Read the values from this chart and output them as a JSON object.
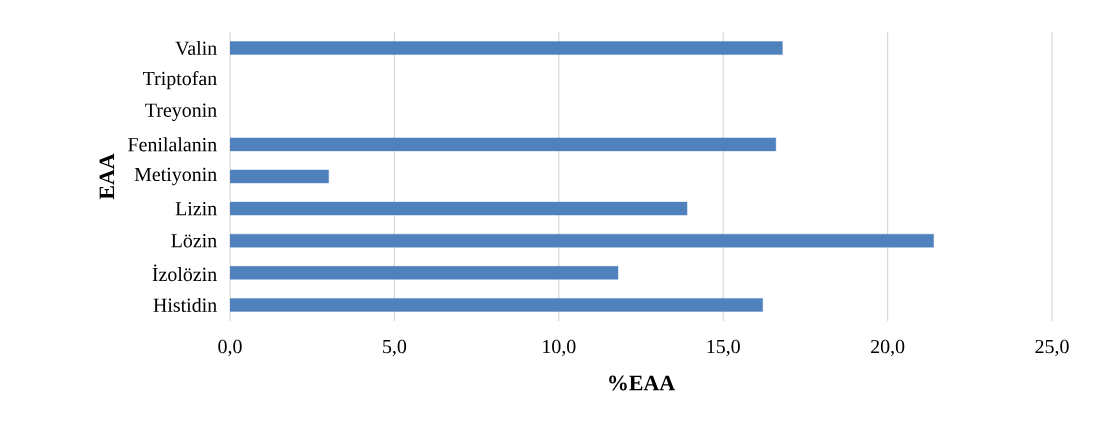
{
  "chart_data": {
    "type": "bar",
    "orientation": "horizontal",
    "xlabel": "%EAA",
    "ylabel": "EAA",
    "categories": [
      "Valin",
      "Triptofan",
      "Treyonin",
      "Fenilalanin",
      "Metiyonin",
      "Lizin",
      "Lözin",
      "İzolözin",
      "Histidin"
    ],
    "values": [
      16.8,
      null,
      null,
      16.6,
      3.0,
      13.9,
      21.4,
      11.8,
      16.2
    ],
    "color": "#4f81bd",
    "xlim": [
      0,
      25
    ],
    "xticks": [
      {
        "value": 0,
        "label": "0,0"
      },
      {
        "value": 5,
        "label": "5,0"
      },
      {
        "value": 10,
        "label": "10,0"
      },
      {
        "value": 15,
        "label": "15,0"
      },
      {
        "value": 20,
        "label": "20,0"
      },
      {
        "value": 25,
        "label": "25,0"
      }
    ],
    "grid": "x"
  }
}
